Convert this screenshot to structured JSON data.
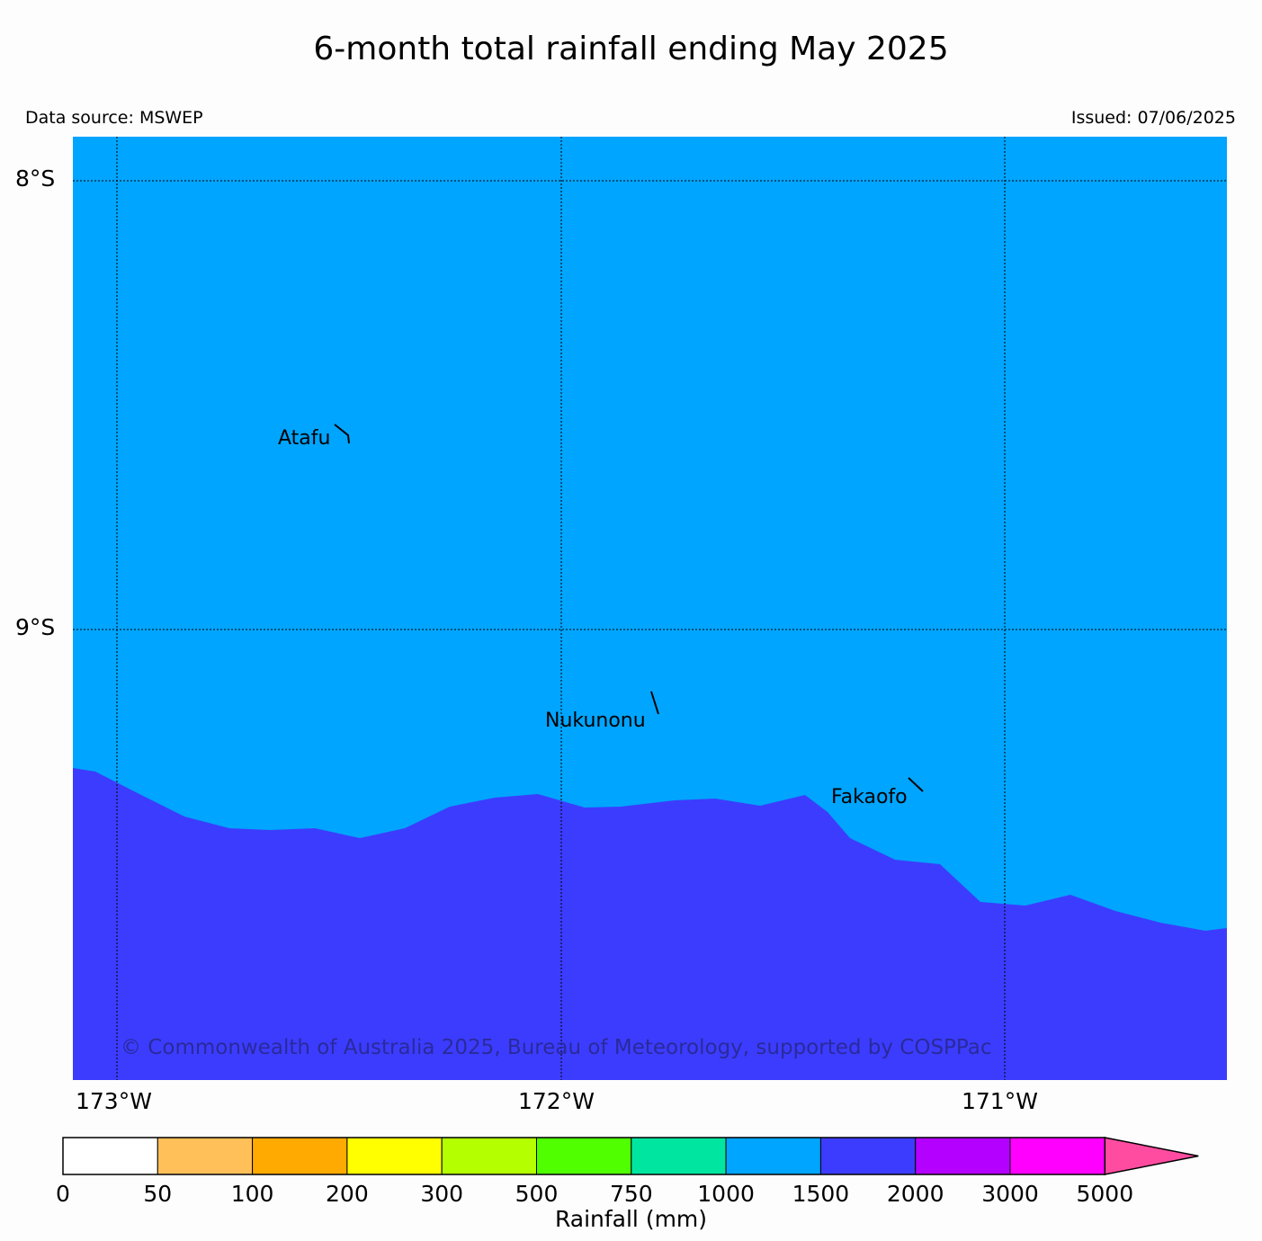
{
  "title": "6-month total rainfall ending May 2025",
  "data_source": "Data source: MSWEP",
  "issued": "Issued: 07/06/2025",
  "copyright": "© Commonwealth of Australia 2025, Bureau of Meteorology, supported by COSPPac",
  "map": {
    "lat_labels": [
      "8°S",
      "9°S"
    ],
    "lon_labels": [
      "173°W",
      "172°W",
      "171°W"
    ],
    "islands": [
      "Atafu",
      "Nukunonu",
      "Fakaofo"
    ],
    "colors": {
      "rain_1000_1500": "#00a5ff",
      "rain_1500_2000": "#3c3cff"
    }
  },
  "colorbar": {
    "title": "Rainfall (mm)",
    "ticks": [
      "0",
      "50",
      "100",
      "200",
      "300",
      "500",
      "750",
      "1000",
      "1500",
      "2000",
      "3000",
      "5000"
    ],
    "colors": [
      "#ffffff",
      "#ffc05a",
      "#ffaa00",
      "#ffff00",
      "#b4ff00",
      "#50ff00",
      "#00e6a0",
      "#00a5ff",
      "#3c3cff",
      "#b400ff",
      "#ff00ff"
    ],
    "extend_color": "#ff4ca0"
  }
}
